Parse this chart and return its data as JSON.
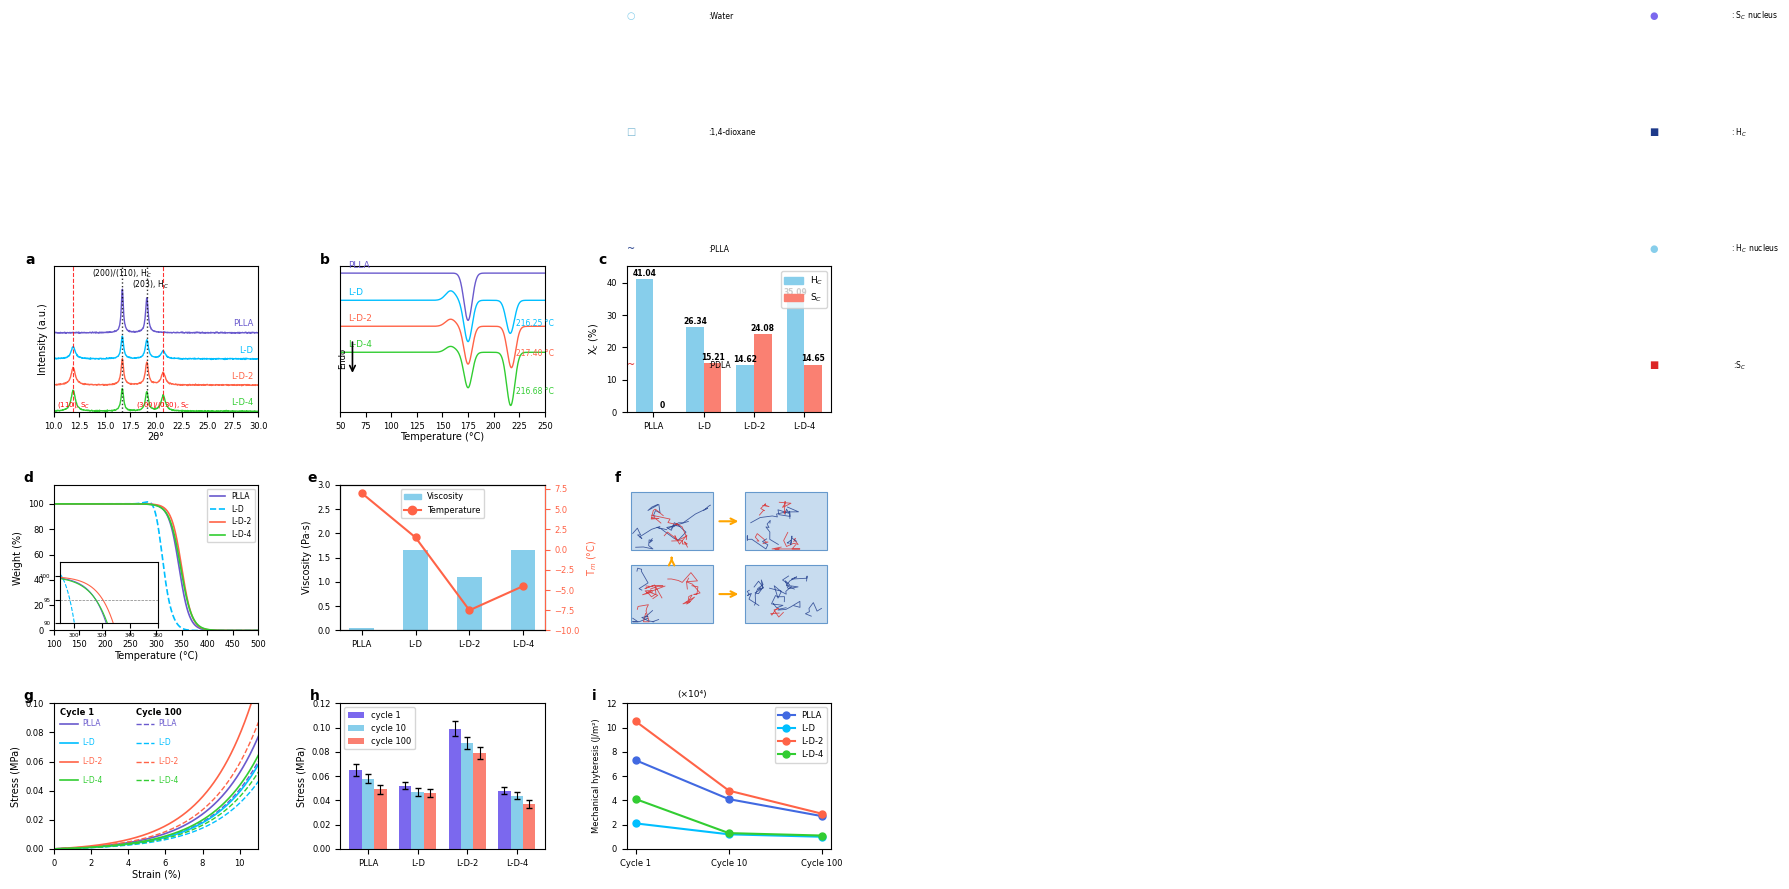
{
  "colors_main": [
    "#6A5ACD",
    "#00BFFF",
    "#FF6347",
    "#32CD32"
  ],
  "labels_main": [
    "PLLA",
    "L-D",
    "L-D-2",
    "L-D-4"
  ],
  "panel_c": {
    "categories": [
      "PLLA",
      "L-D",
      "L-D-2",
      "L-D-4"
    ],
    "hc_values": [
      41.04,
      26.34,
      14.62,
      35.09
    ],
    "sc_values": [
      0,
      15.21,
      24.08,
      14.65
    ],
    "hc_color": "#87CEEB",
    "sc_color": "#FA8072",
    "ylim": [
      0,
      45
    ]
  },
  "panel_e": {
    "categories": [
      "PLLA",
      "L-D",
      "L-D-2",
      "L-D-4"
    ],
    "viscosity": [
      0.05,
      1.65,
      1.1,
      1.65
    ],
    "temperature": [
      7.0,
      1.5,
      -7.5,
      -4.5
    ],
    "bar_color": "#87CEEB",
    "line_color": "#FF6347",
    "ylim_left": [
      0,
      3.0
    ],
    "ylim_right": [
      -10,
      8
    ]
  },
  "panel_h": {
    "categories": [
      "PLLA",
      "L-D",
      "L-D-2",
      "L-D-4"
    ],
    "cycle1": [
      0.065,
      0.052,
      0.099,
      0.048
    ],
    "cycle10": [
      0.058,
      0.047,
      0.087,
      0.044
    ],
    "cycle100": [
      0.049,
      0.046,
      0.079,
      0.037
    ],
    "colors": [
      "#7B68EE",
      "#87CEEB",
      "#FA8072"
    ],
    "ylim": [
      0,
      0.12
    ]
  },
  "panel_i": {
    "xlabel_cycles": [
      "Cycle 1",
      "Cycle 10",
      "Cycle 100"
    ],
    "plla": [
      7.3,
      4.1,
      2.7
    ],
    "ld": [
      2.1,
      1.2,
      1.0
    ],
    "ld2": [
      10.5,
      4.8,
      2.9
    ],
    "ld4": [
      4.1,
      1.3,
      1.1
    ],
    "colors": [
      "#4169E1",
      "#00BFFF",
      "#FF6347",
      "#32CD32"
    ],
    "ylim": [
      0,
      12
    ]
  }
}
